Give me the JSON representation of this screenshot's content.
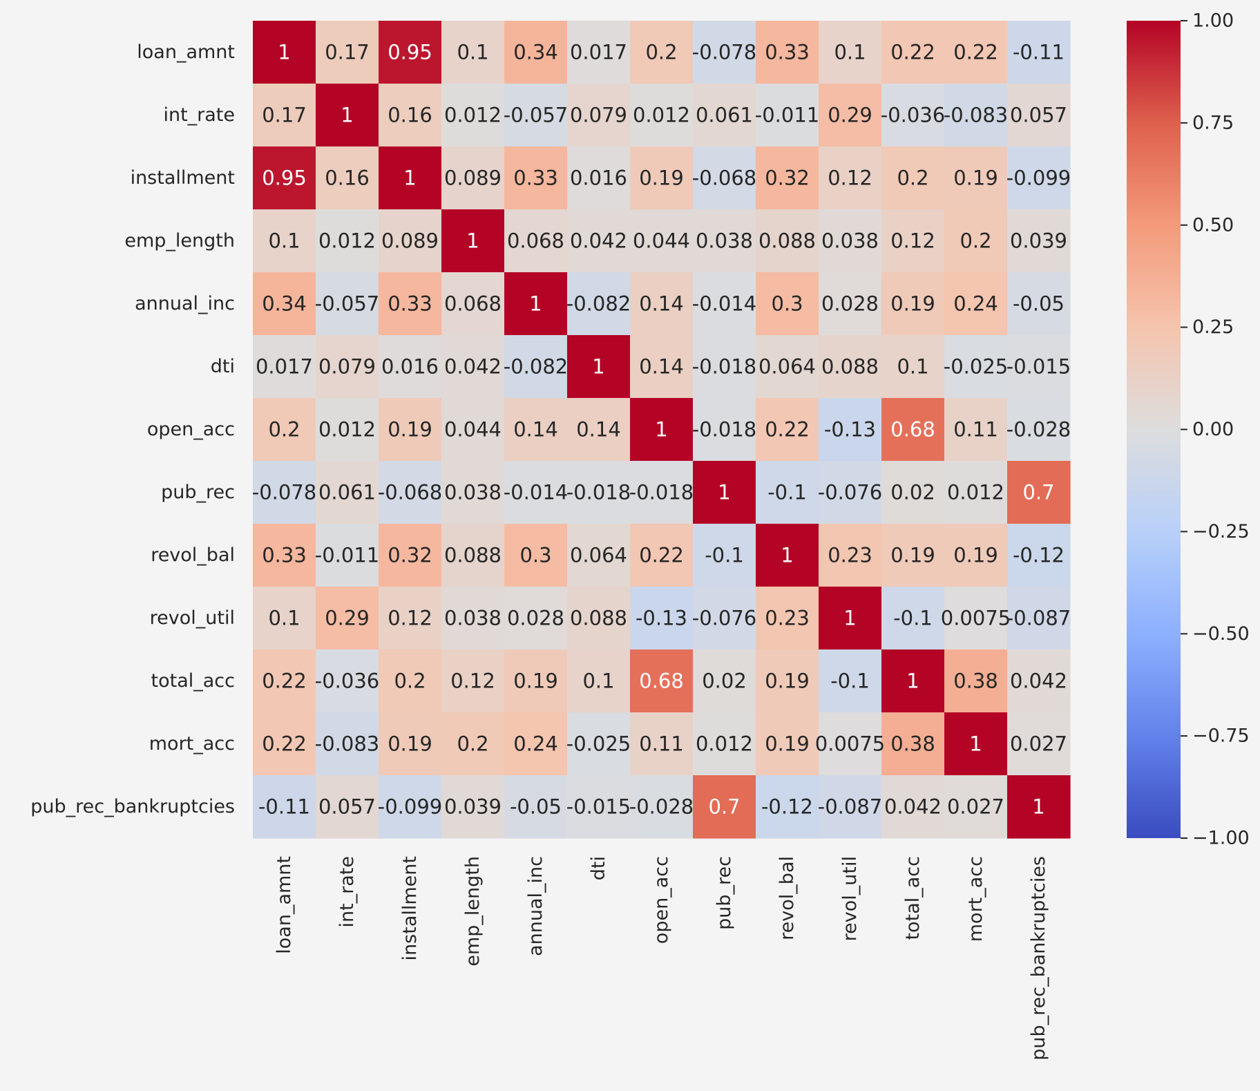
{
  "chart_data": {
    "type": "heatmap",
    "title": "",
    "xlabel": "",
    "ylabel": "",
    "labels": [
      "loan_amnt",
      "int_rate",
      "installment",
      "emp_length",
      "annual_inc",
      "dti",
      "open_acc",
      "pub_rec",
      "revol_bal",
      "revol_util",
      "total_acc",
      "mort_acc",
      "pub_rec_bankruptcies"
    ],
    "annotations": [
      [
        "1",
        "0.17",
        "0.95",
        "0.1",
        "0.34",
        "0.017",
        "0.2",
        "-0.078",
        "0.33",
        "0.1",
        "0.22",
        "0.22",
        "-0.11"
      ],
      [
        "0.17",
        "1",
        "0.16",
        "0.012",
        "-0.057",
        "0.079",
        "0.012",
        "0.061",
        "-0.011",
        "0.29",
        "-0.036",
        "-0.083",
        "0.057"
      ],
      [
        "0.95",
        "0.16",
        "1",
        "0.089",
        "0.33",
        "0.016",
        "0.19",
        "-0.068",
        "0.32",
        "0.12",
        "0.2",
        "0.19",
        "-0.099"
      ],
      [
        "0.1",
        "0.012",
        "0.089",
        "1",
        "0.068",
        "0.042",
        "0.044",
        "0.038",
        "0.088",
        "0.038",
        "0.12",
        "0.2",
        "0.039"
      ],
      [
        "0.34",
        "-0.057",
        "0.33",
        "0.068",
        "1",
        "-0.082",
        "0.14",
        "-0.014",
        "0.3",
        "0.028",
        "0.19",
        "0.24",
        "-0.05"
      ],
      [
        "0.017",
        "0.079",
        "0.016",
        "0.042",
        "-0.082",
        "1",
        "0.14",
        "-0.018",
        "0.064",
        "0.088",
        "0.1",
        "-0.025",
        "-0.015"
      ],
      [
        "0.2",
        "0.012",
        "0.19",
        "0.044",
        "0.14",
        "0.14",
        "1",
        "-0.018",
        "0.22",
        "-0.13",
        "0.68",
        "0.11",
        "-0.028"
      ],
      [
        "-0.078",
        "0.061",
        "-0.068",
        "0.038",
        "-0.014",
        "-0.018",
        "-0.018",
        "1",
        "-0.1",
        "-0.076",
        "0.02",
        "0.012",
        "0.7"
      ],
      [
        "0.33",
        "-0.011",
        "0.32",
        "0.088",
        "0.3",
        "0.064",
        "0.22",
        "-0.1",
        "1",
        "0.23",
        "0.19",
        "0.19",
        "-0.12"
      ],
      [
        "0.1",
        "0.29",
        "0.12",
        "0.038",
        "0.028",
        "0.088",
        "-0.13",
        "-0.076",
        "0.23",
        "1",
        "-0.1",
        "0.0075",
        "-0.087"
      ],
      [
        "0.22",
        "-0.036",
        "0.2",
        "0.12",
        "0.19",
        "0.1",
        "0.68",
        "0.02",
        "0.19",
        "-0.1",
        "1",
        "0.38",
        "0.042"
      ],
      [
        "0.22",
        "-0.083",
        "0.19",
        "0.2",
        "0.24",
        "-0.025",
        "0.11",
        "0.012",
        "0.19",
        "0.0075",
        "0.38",
        "1",
        "0.027"
      ],
      [
        "-0.11",
        "0.057",
        "-0.099",
        "0.039",
        "-0.05",
        "-0.015",
        "-0.028",
        "0.7",
        "-0.12",
        "-0.087",
        "0.042",
        "0.027",
        "1"
      ]
    ],
    "vmin": -1,
    "vmax": 1,
    "colormap": "coolwarm",
    "colorbar_ticks": [
      "1.00",
      "0.75",
      "0.50",
      "0.25",
      "0.00",
      "−0.25",
      "−0.50",
      "−0.75",
      "−1.00"
    ],
    "grid": false,
    "colorbar_position": "right"
  },
  "colors": {
    "background": "#f4f4f4",
    "text": "#262626"
  }
}
